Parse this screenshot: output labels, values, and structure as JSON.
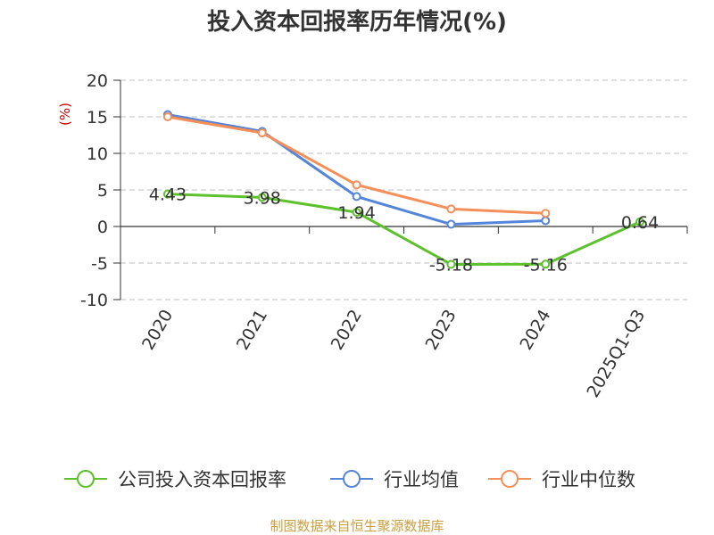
{
  "chart_data": {
    "type": "line",
    "title": "投入资本回报率历年情况(%)",
    "ylabel": "(%)",
    "xlabel": "",
    "ylim": [
      -10,
      20
    ],
    "yticks": [
      20,
      15,
      10,
      5,
      0,
      -5,
      -10
    ],
    "grid": true,
    "categories": [
      "2020",
      "2021",
      "2022",
      "2023",
      "2024",
      "2025Q1-Q3"
    ],
    "series": [
      {
        "name": "公司投入资本回报率",
        "color": "#5cc12c",
        "values": [
          4.43,
          3.98,
          1.94,
          -5.18,
          -5.16,
          0.64
        ],
        "labels": [
          "4.43",
          "3.98",
          "1.94",
          "-5.18",
          "-5.16",
          "0.64"
        ]
      },
      {
        "name": "行业均值",
        "color": "#5585d8",
        "values": [
          15.3,
          13.0,
          4.1,
          0.3,
          0.8,
          null
        ]
      },
      {
        "name": "行业中位数",
        "color": "#f58f5a",
        "values": [
          15.0,
          12.8,
          5.7,
          2.4,
          1.8,
          null
        ]
      }
    ],
    "legend_position": "bottom",
    "source": "制图数据来自恒生聚源数据库"
  }
}
